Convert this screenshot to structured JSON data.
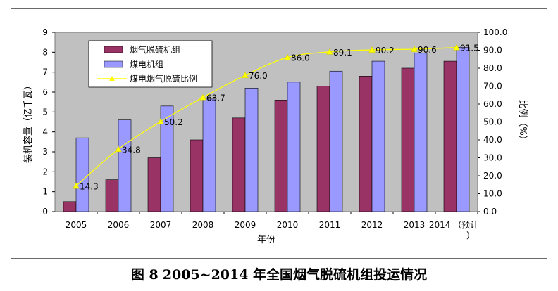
{
  "chart_data": {
    "type": "bar",
    "categories": [
      "2005",
      "2006",
      "2007",
      "2008",
      "2009",
      "2010",
      "2011",
      "2012",
      "2013",
      "2014（预计）"
    ],
    "series": [
      {
        "name": "烟气脱硫机组",
        "type": "bar",
        "axis": "left",
        "color": "#993366",
        "values": [
          0.5,
          1.6,
          2.7,
          3.6,
          4.7,
          5.6,
          6.3,
          6.8,
          7.2,
          7.55
        ]
      },
      {
        "name": "煤电机组",
        "type": "bar",
        "axis": "left",
        "color": "#9999ff",
        "values": [
          3.7,
          4.6,
          5.3,
          5.65,
          6.2,
          6.5,
          7.05,
          7.55,
          7.95,
          8.25
        ]
      },
      {
        "name": "煤电烟气脱硫比例",
        "type": "line",
        "axis": "right",
        "color": "#ffff00",
        "values": [
          14.3,
          34.8,
          50.2,
          63.7,
          76.0,
          86.0,
          89.1,
          90.2,
          90.6,
          91.5
        ]
      }
    ],
    "data_labels": [
      "14.3",
      "34.8",
      "50.2",
      "63.7",
      "76.0",
      "86.0",
      "89.1",
      "90.2",
      "90.6",
      "91.5"
    ],
    "ylabel": "装机容量（亿千瓦）",
    "y2label": "比例（%）",
    "xlabel": "年份",
    "ylim": [
      0,
      9
    ],
    "yticks": [
      "0",
      "1",
      "2",
      "3",
      "4",
      "5",
      "6",
      "7",
      "8",
      "9"
    ],
    "y2lim": [
      0,
      100
    ],
    "y2ticks": [
      "0.0",
      "10.0",
      "20.0",
      "30.0",
      "40.0",
      "50.0",
      "60.0",
      "70.0",
      "80.0",
      "90.0",
      "100.0"
    ],
    "legend_position": "top-left",
    "grid": false,
    "plot_background": "#c0c0c0"
  },
  "caption": {
    "figure_no": "图 8",
    "title": "2005~2014 年全国烟气脱硫机组投运情况"
  }
}
